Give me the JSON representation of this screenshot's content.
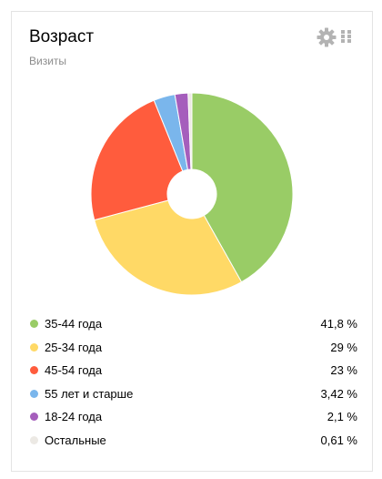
{
  "widget": {
    "title": "Возраст",
    "subtitle": "Визиты",
    "settings_icon": "gear-icon",
    "drag_icon": "drag-handle-icon",
    "icon_color": "#b3b3b3"
  },
  "chart_data": {
    "type": "pie",
    "style": "donut",
    "title": "Возраст",
    "subtitle": "Визиты",
    "legend_position": "bottom",
    "slices": [
      {
        "label": "35-44 года",
        "value": 41.8,
        "display": "41,8 %",
        "color": "#99cc66"
      },
      {
        "label": "25-34 года",
        "value": 29,
        "display": "29 %",
        "color": "#ffd966"
      },
      {
        "label": "45-54 года",
        "value": 23,
        "display": "23 %",
        "color": "#ff5c3d"
      },
      {
        "label": "55 лет и старше",
        "value": 3.42,
        "display": "3,42 %",
        "color": "#7ab6ec"
      },
      {
        "label": "18-24 года",
        "value": 2.1,
        "display": "2,1 %",
        "color": "#a55ebc"
      },
      {
        "label": "Остальные",
        "value": 0.61,
        "display": "0,61 %",
        "color": "#ece9e4"
      }
    ]
  }
}
